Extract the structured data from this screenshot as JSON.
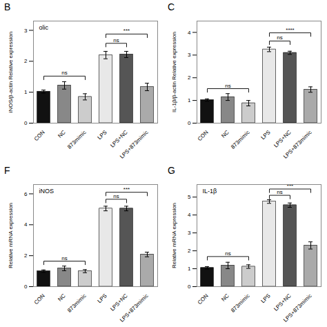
{
  "chart_data": [
    {
      "type": "bar",
      "title": "B",
      "ylabel": "iNOS/β-actin Relative expression",
      "categories": [
        "CON",
        "NC",
        "873mimic",
        "LPS",
        "LPS+NC",
        "LPS+873mimic"
      ],
      "values": [
        1.02,
        1.22,
        0.85,
        2.2,
        2.22,
        1.17
      ],
      "errors": [
        0.05,
        0.12,
        0.1,
        0.12,
        0.1,
        0.12
      ],
      "colors": [
        "#111111",
        "#888888",
        "#cccccc",
        "#e8e8e8",
        "#555555",
        "#aaaaaa"
      ],
      "ylim": [
        0,
        3.3
      ],
      "yticks": [
        0,
        1,
        2,
        3
      ],
      "brackets": [
        {
          "from": "CON",
          "to": "873mimic",
          "y": 1.52,
          "label": "ns"
        },
        {
          "from": "LPS",
          "to": "LPS+NC",
          "y": 2.58,
          "label": "ns"
        },
        {
          "from": "LPS",
          "to": "LPS+873mimic",
          "y": 2.88,
          "label": "***"
        }
      ],
      "annotations": [
        {
          "text": "olic"
        }
      ]
    },
    {
      "type": "bar",
      "title": "C",
      "ylabel": "IL-1β/β-actin Relative expression",
      "categories": [
        "CON",
        "NC",
        "873mimic",
        "LPS",
        "LPS+NC",
        "LPS+873mimic"
      ],
      "values": [
        1.02,
        1.15,
        0.88,
        3.25,
        3.1,
        1.48
      ],
      "errors": [
        0.05,
        0.15,
        0.12,
        0.1,
        0.07,
        0.12
      ],
      "colors": [
        "#111111",
        "#888888",
        "#cccccc",
        "#e8e8e8",
        "#555555",
        "#aaaaaa"
      ],
      "ylim": [
        0,
        4.5
      ],
      "yticks": [
        0,
        1,
        2,
        3,
        4
      ],
      "brackets": [
        {
          "from": "CON",
          "to": "873mimic",
          "y": 1.52,
          "label": "ns"
        },
        {
          "from": "LPS",
          "to": "LPS+NC",
          "y": 3.62,
          "label": "ns"
        },
        {
          "from": "LPS",
          "to": "LPS+873mimic",
          "y": 3.98,
          "label": "****"
        }
      ]
    },
    {
      "type": "bar",
      "title": "F",
      "ylabel": "Relative mRNA expression",
      "categories": [
        "CON",
        "NC",
        "873mimic",
        "LPS",
        "LPS+NC",
        "LPS+873mimic"
      ],
      "values": [
        1.0,
        1.18,
        1.0,
        5.05,
        5.05,
        2.08
      ],
      "errors": [
        0.08,
        0.15,
        0.1,
        0.15,
        0.15,
        0.15
      ],
      "colors": [
        "#111111",
        "#888888",
        "#cccccc",
        "#e8e8e8",
        "#555555",
        "#aaaaaa"
      ],
      "ylim": [
        0,
        6.6
      ],
      "yticks": [
        0,
        2,
        4,
        6
      ],
      "brackets": [
        {
          "from": "CON",
          "to": "873mimic",
          "y": 1.65,
          "label": "ns"
        },
        {
          "from": "LPS",
          "to": "LPS+NC",
          "y": 5.65,
          "label": "ns"
        },
        {
          "from": "LPS",
          "to": "LPS+873mimic",
          "y": 6.1,
          "label": "***"
        }
      ],
      "annotations": [
        {
          "text": "iNOS"
        }
      ]
    },
    {
      "type": "bar",
      "title": "G",
      "ylabel": "Relative mRNA expression",
      "categories": [
        "CON",
        "NC",
        "873mimic",
        "LPS",
        "LPS+NC",
        "LPS+873mimic"
      ],
      "values": [
        1.05,
        1.18,
        1.12,
        4.75,
        4.55,
        2.3
      ],
      "errors": [
        0.07,
        0.18,
        0.1,
        0.1,
        0.12,
        0.2
      ],
      "colors": [
        "#111111",
        "#888888",
        "#cccccc",
        "#e8e8e8",
        "#555555",
        "#aaaaaa"
      ],
      "ylim": [
        0,
        5.7
      ],
      "yticks": [
        0,
        1,
        2,
        3,
        4,
        5
      ],
      "brackets": [
        {
          "from": "CON",
          "to": "873mimic",
          "y": 1.68,
          "label": "ns"
        },
        {
          "from": "LPS",
          "to": "LPS+NC",
          "y": 5.1,
          "label": "ns"
        },
        {
          "from": "LPS",
          "to": "LPS+873mimic",
          "y": 5.45,
          "label": "***"
        }
      ],
      "annotations": [
        {
          "text": "IL-1β"
        }
      ]
    }
  ]
}
